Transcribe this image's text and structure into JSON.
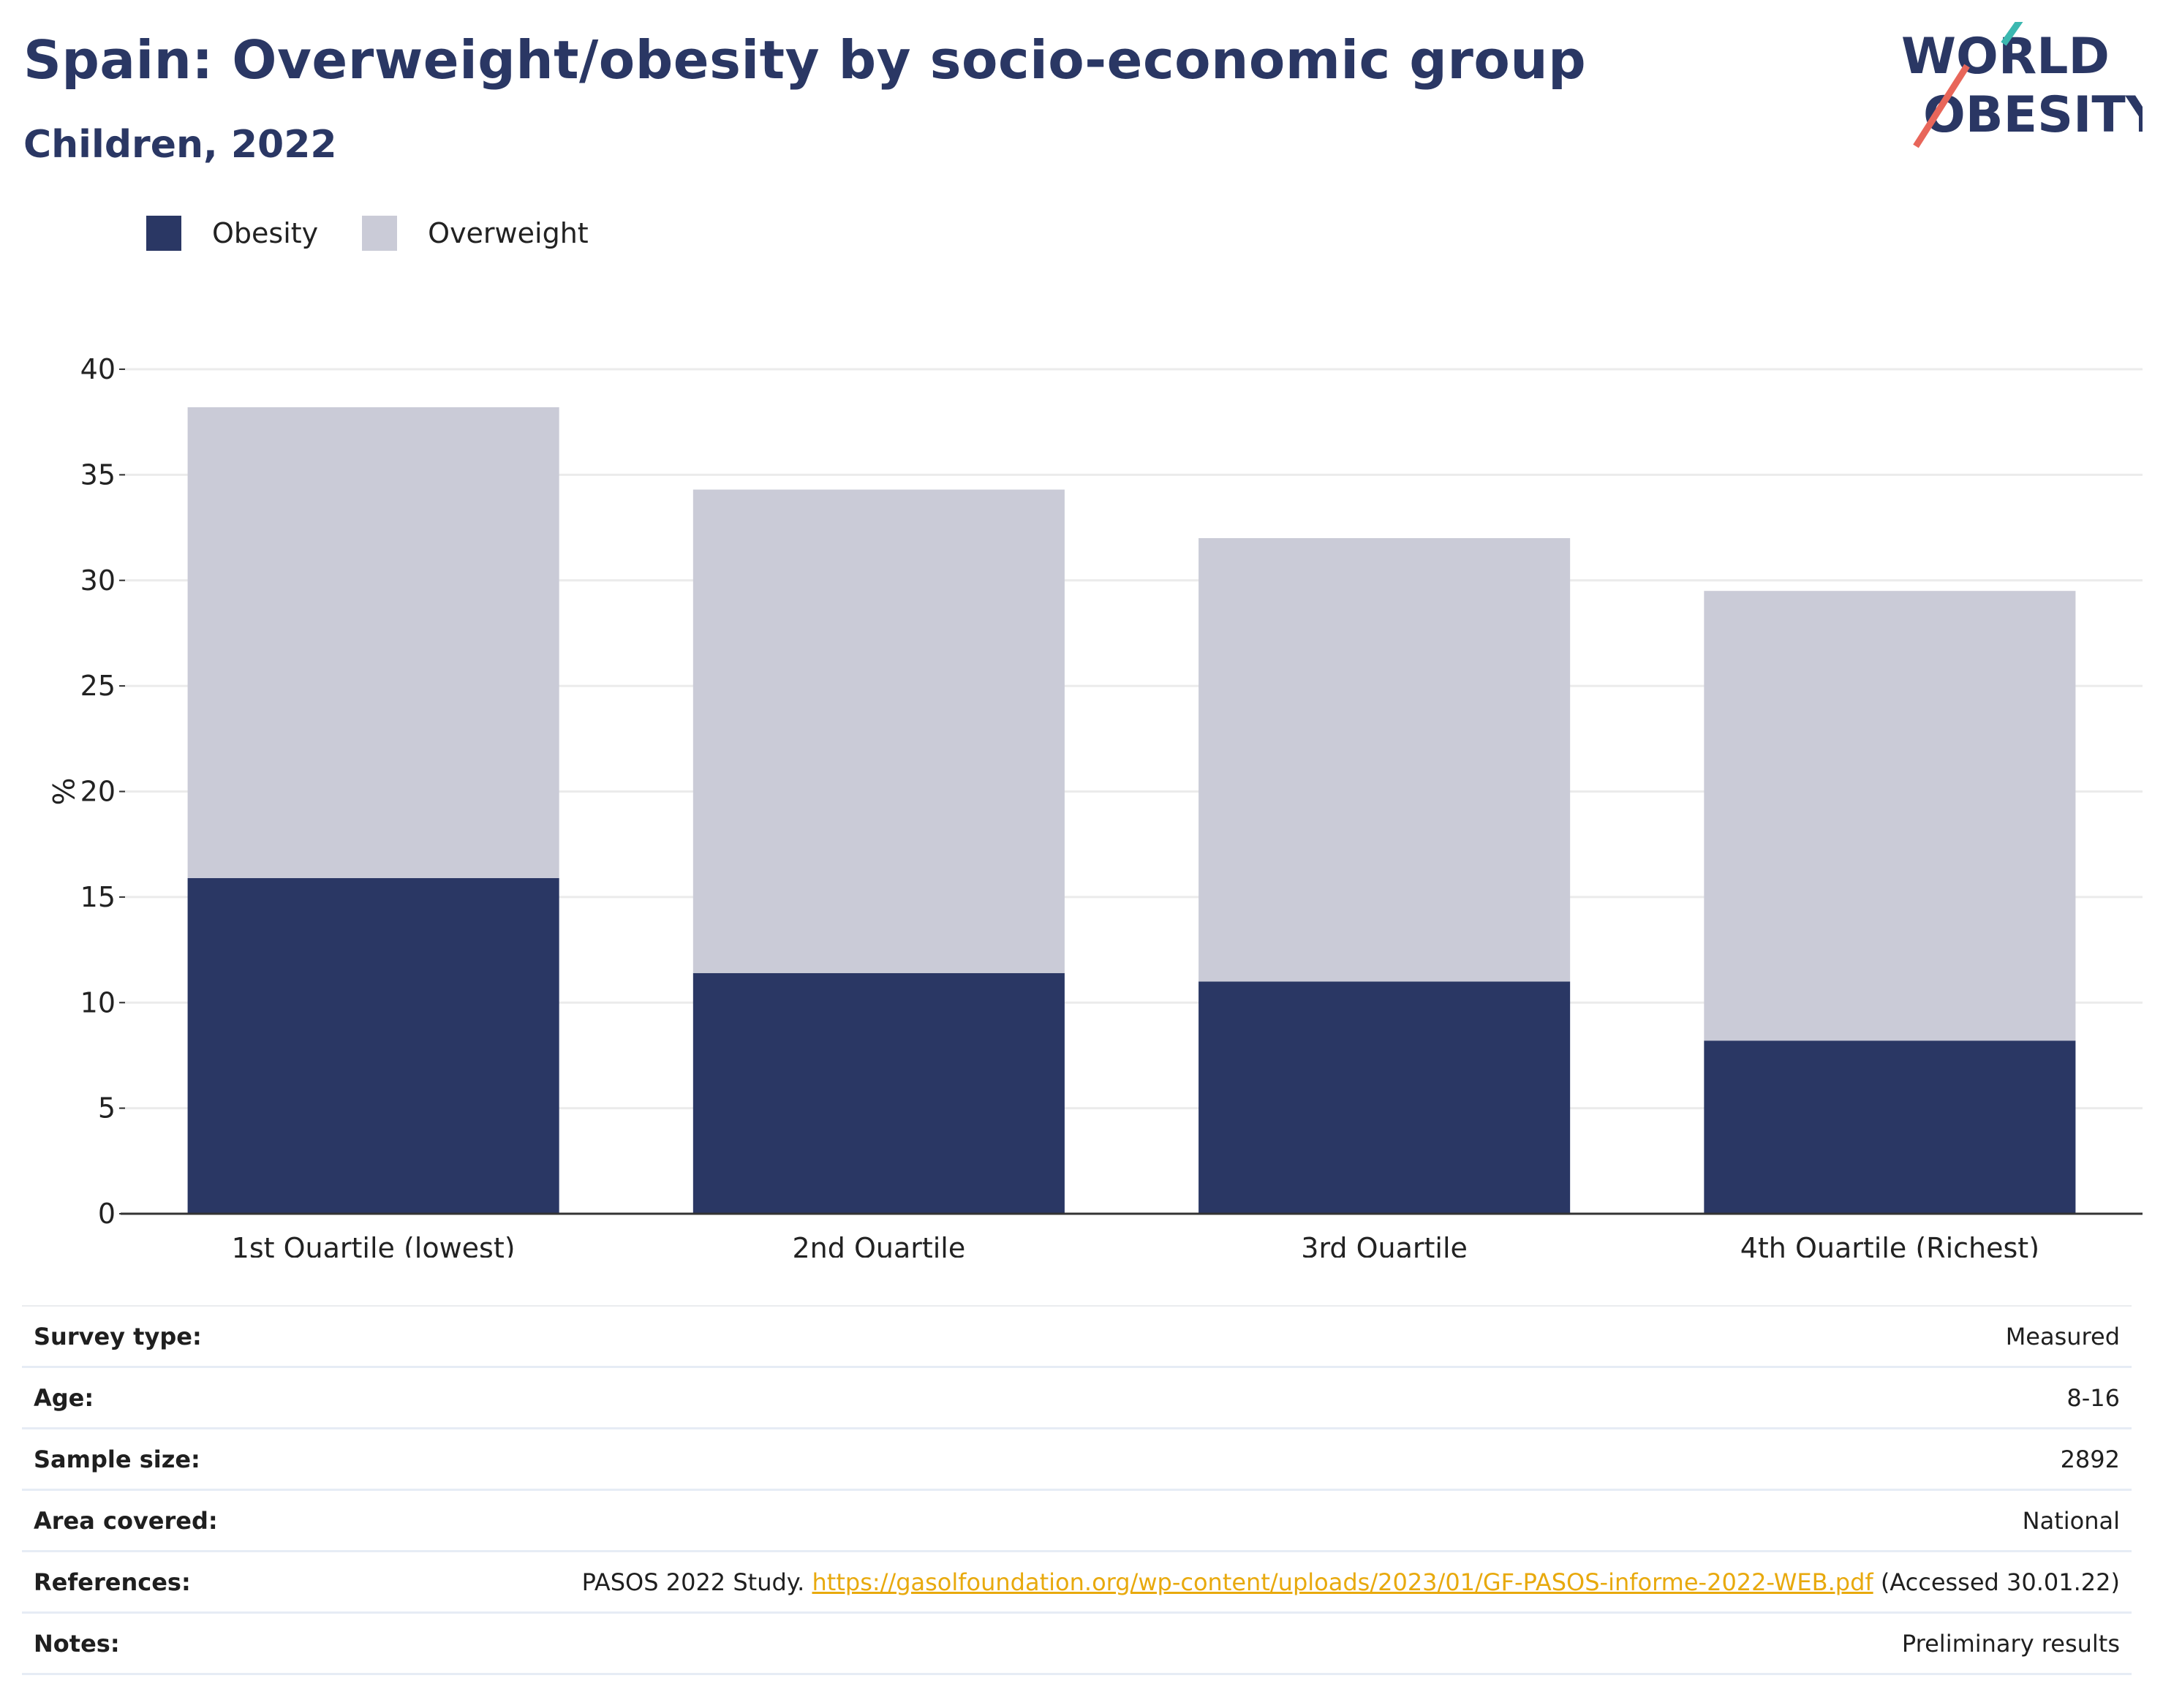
{
  "header": {
    "title": "Spain: Overweight/obesity by socio-economic group",
    "subtitle": "Children, 2022"
  },
  "logo": {
    "line1": "WORLD",
    "line2": "OBESITY"
  },
  "colors": {
    "obesity": "#2a3764",
    "overweight": "#cacbd7",
    "accent_teal": "#3bb8b0",
    "accent_red": "#e8665a",
    "link": "#e8a90d"
  },
  "chart_data": {
    "type": "bar",
    "stacked": true,
    "categories": [
      "1st Quartile (lowest)",
      "2nd Quartile",
      "3rd Quartile",
      "4th Quartile (Richest)"
    ],
    "series": [
      {
        "name": "Obesity",
        "values": [
          15.9,
          11.4,
          11.0,
          8.2
        ]
      },
      {
        "name": "Overweight",
        "values": [
          22.3,
          22.9,
          21.0,
          21.3
        ]
      }
    ],
    "totals": [
      38.2,
      34.3,
      32.0,
      29.5
    ],
    "ylabel": "%",
    "ylim": [
      0,
      40
    ],
    "yticks": [
      0,
      5,
      10,
      15,
      20,
      25,
      30,
      35,
      40
    ],
    "grid": true,
    "legend_position": "top-left"
  },
  "info": {
    "rows": [
      {
        "label": "Survey type:",
        "value": "Measured"
      },
      {
        "label": "Age:",
        "value": "8-16"
      },
      {
        "label": "Sample size:",
        "value": "2892"
      },
      {
        "label": "Area covered:",
        "value": "National"
      }
    ],
    "references": {
      "label": "References:",
      "prefix": "PASOS 2022 Study. ",
      "link": "https://gasolfoundation.org/wp-content/uploads/2023/01/GF-PASOS-informe-2022-WEB.pdf",
      "suffix": " (Accessed 30.01.22)"
    },
    "notes": {
      "label": "Notes:",
      "value": "Preliminary results"
    }
  }
}
